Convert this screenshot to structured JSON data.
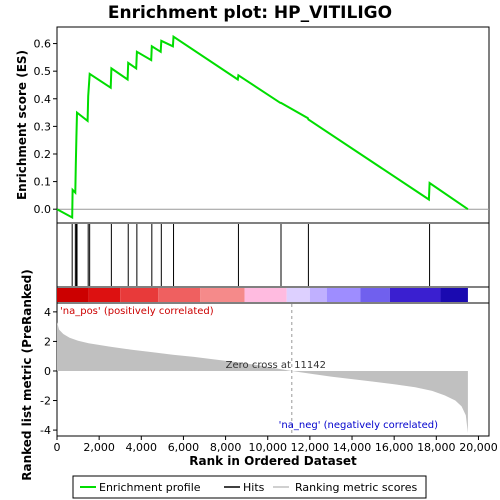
{
  "chart_data": {
    "type": "line",
    "title": "Enrichment plot: HP_VITILIGO",
    "es_panel": {
      "ylabel": "Enrichment score (ES)",
      "ylim": [
        -0.05,
        0.66
      ],
      "yticks": [
        0.0,
        0.1,
        0.2,
        0.3,
        0.4,
        0.5,
        0.6
      ],
      "ytick_labels": [
        "0.0",
        "0.1",
        "0.2",
        "0.3",
        "0.4",
        "0.5",
        "0.6"
      ],
      "line_color": "#00dd00",
      "points": [
        [
          0,
          0.0
        ],
        [
          720,
          -0.03
        ],
        [
          740,
          0.07
        ],
        [
          870,
          0.06
        ],
        [
          890,
          0.16
        ],
        [
          920,
          0.26
        ],
        [
          950,
          0.35
        ],
        [
          1450,
          0.32
        ],
        [
          1480,
          0.41
        ],
        [
          1550,
          0.49
        ],
        [
          2550,
          0.44
        ],
        [
          2580,
          0.51
        ],
        [
          3350,
          0.47
        ],
        [
          3380,
          0.53
        ],
        [
          3760,
          0.51
        ],
        [
          3790,
          0.57
        ],
        [
          4470,
          0.54
        ],
        [
          4500,
          0.59
        ],
        [
          4920,
          0.57
        ],
        [
          4950,
          0.61
        ],
        [
          5500,
          0.59
        ],
        [
          5530,
          0.625
        ],
        [
          8580,
          0.47
        ],
        [
          8610,
          0.485
        ],
        [
          10600,
          0.385
        ],
        [
          10630,
          0.385
        ],
        [
          11900,
          0.33
        ],
        [
          11930,
          0.325
        ],
        [
          17650,
          0.035
        ],
        [
          17680,
          0.095
        ],
        [
          19500,
          0.0
        ]
      ]
    },
    "hits": [
      720,
      870,
      920,
      950,
      1480,
      1550,
      2580,
      3380,
      3790,
      4500,
      4950,
      5530,
      8610,
      10630,
      11930,
      17680
    ],
    "heatmap_band": {
      "colors": [
        "#cc0000",
        "#dd1111",
        "#e83a3a",
        "#ef6060",
        "#f58a8a",
        "#ffbbe0",
        "#ddd0ff",
        "#c0b0ff",
        "#9e8dff",
        "#7060ee",
        "#3a1fd0",
        "#1a0ab0"
      ],
      "stops": [
        0,
        1500,
        3000,
        4800,
        6800,
        8900,
        10900,
        12000,
        12800,
        14400,
        15800,
        18200,
        19500
      ]
    },
    "metric_panel": {
      "ylabel": "Ranked list metric (PreRanked)",
      "ylim": [
        -4.4,
        4.6
      ],
      "yticks": [
        -4,
        -2,
        0,
        2,
        4
      ],
      "ytick_labels": [
        "-4",
        "-2",
        "0",
        "2",
        "4"
      ],
      "fill_color": "#c0c0c0",
      "curve": [
        [
          0,
          3.3
        ],
        [
          100,
          2.8
        ],
        [
          300,
          2.5
        ],
        [
          600,
          2.25
        ],
        [
          1000,
          2.05
        ],
        [
          1500,
          1.88
        ],
        [
          2500,
          1.65
        ],
        [
          3500,
          1.45
        ],
        [
          4500,
          1.28
        ],
        [
          5500,
          1.1
        ],
        [
          6500,
          0.95
        ],
        [
          7500,
          0.78
        ],
        [
          8500,
          0.6
        ],
        [
          9500,
          0.4
        ],
        [
          10500,
          0.15
        ],
        [
          11142,
          0.0
        ],
        [
          12000,
          -0.18
        ],
        [
          13000,
          -0.38
        ],
        [
          14000,
          -0.55
        ],
        [
          15000,
          -0.72
        ],
        [
          16000,
          -0.9
        ],
        [
          17000,
          -1.1
        ],
        [
          17800,
          -1.35
        ],
        [
          18400,
          -1.65
        ],
        [
          18900,
          -2.0
        ],
        [
          19200,
          -2.4
        ],
        [
          19400,
          -3.0
        ],
        [
          19500,
          -4.2
        ]
      ],
      "zero_cross": 11142,
      "zero_cross_label": "Zero cross at 11142",
      "pos_label": "'na_pos' (positively correlated)",
      "neg_label": "'na_neg' (negatively correlated)",
      "pos_color": "#cc0000",
      "neg_color": "#0000cc"
    },
    "xlabel": "Rank in Ordered Dataset",
    "xlim": [
      0,
      20500
    ],
    "xticks": [
      0,
      2000,
      4000,
      6000,
      8000,
      10000,
      12000,
      14000,
      16000,
      18000,
      20000
    ],
    "xtick_labels": [
      "0",
      "2,000",
      "4,000",
      "6,000",
      "8,000",
      "10,000",
      "12,000",
      "14,000",
      "16,000",
      "18,000",
      "20,000"
    ],
    "legend": {
      "placement": "bottom",
      "entries": [
        {
          "label": "Enrichment profile",
          "color": "#00dd00"
        },
        {
          "label": "Hits",
          "color": "#000000"
        },
        {
          "label": "Ranking metric scores",
          "color": "#c0c0c0"
        }
      ]
    }
  }
}
